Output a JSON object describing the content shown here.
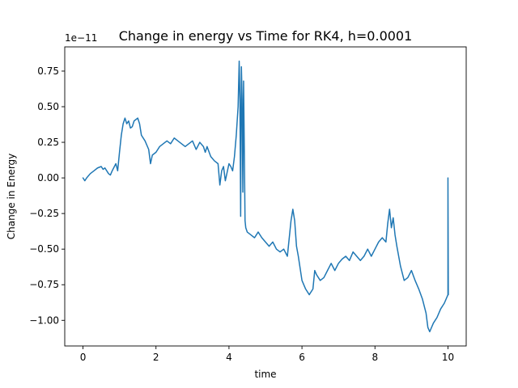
{
  "chart_data": {
    "type": "line",
    "title": "Change in energy vs Time for RK4, h=0.0001",
    "xlabel": "time",
    "ylabel": "Change in Energy",
    "y_offset_label": "1e−11",
    "xlim": [
      -0.5,
      10.5
    ],
    "ylim": [
      -1.18,
      0.92
    ],
    "grid": false,
    "x_ticks": [
      0,
      2,
      4,
      6,
      8,
      10
    ],
    "x_tick_labels": [
      "0",
      "2",
      "4",
      "6",
      "8",
      "10"
    ],
    "y_ticks": [
      -1.0,
      -0.75,
      -0.5,
      -0.25,
      0.0,
      0.25,
      0.5,
      0.75
    ],
    "y_tick_labels": [
      "−1.00",
      "−0.75",
      "−0.50",
      "−0.25",
      "0.00",
      "0.25",
      "0.50",
      "0.75"
    ],
    "color": "#1f77b4",
    "series": [
      {
        "x": [
          0,
          0.05,
          0.1,
          0.2,
          0.3,
          0.4,
          0.5,
          0.55,
          0.6,
          0.7,
          0.75,
          0.8,
          0.9,
          0.95,
          1.0,
          1.05,
          1.1,
          1.15,
          1.2,
          1.25,
          1.3,
          1.35,
          1.4,
          1.5,
          1.55,
          1.6,
          1.7,
          1.8,
          1.85,
          1.9,
          2.0,
          2.1,
          2.2,
          2.3,
          2.4,
          2.5,
          2.6,
          2.7,
          2.8,
          2.9,
          3.0,
          3.1,
          3.2,
          3.3,
          3.35,
          3.4,
          3.5,
          3.6,
          3.7,
          3.75,
          3.8,
          3.85,
          3.9,
          4.0,
          4.05,
          4.1,
          4.15,
          4.2,
          4.25,
          4.28,
          4.3,
          4.32,
          4.34,
          4.36,
          4.38,
          4.4,
          4.42,
          4.44,
          4.46,
          4.5,
          4.6,
          4.7,
          4.8,
          4.9,
          5.0,
          5.1,
          5.2,
          5.3,
          5.4,
          5.5,
          5.6,
          5.7,
          5.75,
          5.8,
          5.85,
          5.9,
          6.0,
          6.1,
          6.2,
          6.3,
          6.35,
          6.4,
          6.5,
          6.6,
          6.7,
          6.8,
          6.9,
          7.0,
          7.1,
          7.2,
          7.3,
          7.4,
          7.5,
          7.6,
          7.7,
          7.8,
          7.9,
          8.0,
          8.1,
          8.2,
          8.3,
          8.35,
          8.4,
          8.45,
          8.5,
          8.55,
          8.6,
          8.7,
          8.8,
          8.9,
          9.0,
          9.1,
          9.2,
          9.3,
          9.4,
          9.45,
          9.5,
          9.6,
          9.7,
          9.8,
          9.9,
          9.95,
          10.0,
          10.0,
          10.01
        ],
        "values": [
          0.0,
          -0.02,
          0.0,
          0.03,
          0.05,
          0.07,
          0.08,
          0.06,
          0.07,
          0.03,
          0.02,
          0.05,
          0.1,
          0.05,
          0.18,
          0.3,
          0.38,
          0.42,
          0.38,
          0.4,
          0.35,
          0.36,
          0.4,
          0.42,
          0.38,
          0.3,
          0.26,
          0.2,
          0.1,
          0.16,
          0.18,
          0.22,
          0.24,
          0.26,
          0.24,
          0.28,
          0.26,
          0.24,
          0.22,
          0.24,
          0.26,
          0.2,
          0.25,
          0.22,
          0.18,
          0.22,
          0.15,
          0.12,
          0.1,
          -0.05,
          0.05,
          0.08,
          -0.02,
          0.1,
          0.08,
          0.05,
          0.15,
          0.3,
          0.5,
          0.82,
          0.55,
          -0.27,
          0.78,
          0.55,
          -0.1,
          0.68,
          0.2,
          -0.3,
          -0.35,
          -0.38,
          -0.4,
          -0.42,
          -0.38,
          -0.42,
          -0.45,
          -0.48,
          -0.45,
          -0.5,
          -0.52,
          -0.5,
          -0.55,
          -0.3,
          -0.22,
          -0.3,
          -0.48,
          -0.55,
          -0.72,
          -0.78,
          -0.82,
          -0.78,
          -0.65,
          -0.68,
          -0.72,
          -0.7,
          -0.65,
          -0.6,
          -0.65,
          -0.6,
          -0.57,
          -0.55,
          -0.58,
          -0.52,
          -0.55,
          -0.58,
          -0.55,
          -0.5,
          -0.55,
          -0.5,
          -0.45,
          -0.42,
          -0.45,
          -0.32,
          -0.22,
          -0.35,
          -0.28,
          -0.4,
          -0.48,
          -0.62,
          -0.72,
          -0.7,
          -0.65,
          -0.72,
          -0.78,
          -0.85,
          -0.95,
          -1.05,
          -1.08,
          -1.02,
          -0.98,
          -0.92,
          -0.88,
          -0.85,
          -0.82,
          0.0,
          -0.82
        ]
      }
    ]
  }
}
